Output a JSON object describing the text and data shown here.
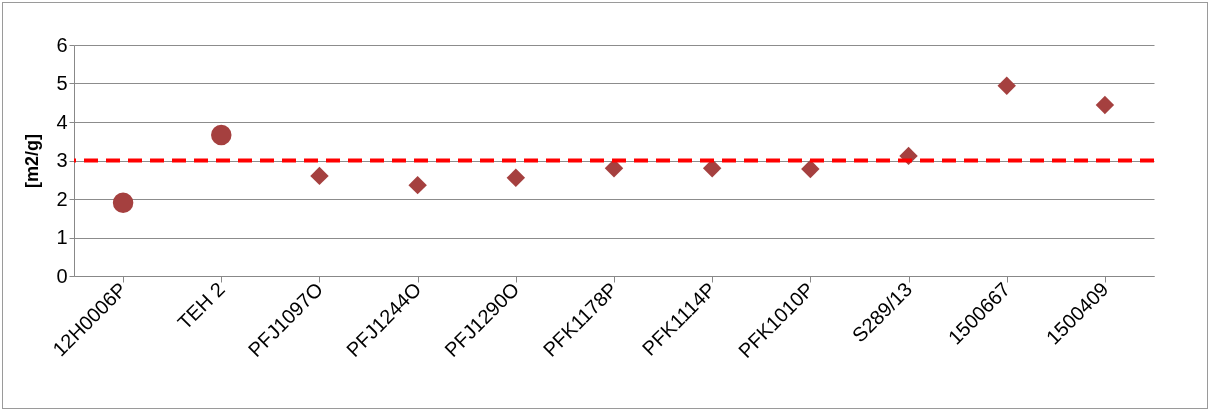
{
  "chart_data": {
    "type": "scatter",
    "ylabel": "[m2/g]",
    "categories": [
      "12H0006P",
      "TEH 2",
      "PFJ1097O",
      "PFJ1244O",
      "PFJ1290O",
      "PFK1178P",
      "PFK1114P",
      "PFK1010P",
      "S289/13",
      "1500667",
      "1500409"
    ],
    "series": [
      {
        "color": "#a5403f",
        "marker": "circle",
        "values": [
          1.9,
          3.66,
          null,
          null,
          null,
          null,
          null,
          null,
          null,
          null,
          null
        ]
      },
      {
        "color": "#a5403f",
        "marker": "diamond",
        "values": [
          null,
          null,
          2.6,
          2.36,
          2.55,
          2.8,
          2.8,
          2.78,
          3.12,
          4.94,
          4.44
        ]
      }
    ],
    "ylim": [
      0,
      6
    ],
    "yticks": [
      0,
      1,
      2,
      3,
      4,
      5,
      6
    ],
    "grid": "y",
    "ref_lines": [
      {
        "axis": "y",
        "value": 3,
        "color": "#ff0000",
        "line_style": "dashed"
      }
    ]
  }
}
